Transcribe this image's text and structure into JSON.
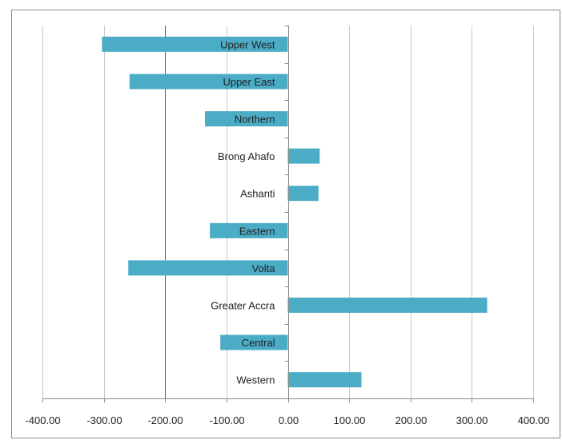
{
  "chart_data": {
    "type": "bar",
    "orientation": "horizontal",
    "title": "",
    "xlabel": "",
    "ylabel": "",
    "categories": [
      "Upper West",
      "Upper East",
      "Northern",
      "Brong Ahafo",
      "Ashanti",
      "Eastern",
      "Volta",
      "Greater Accra",
      "Central",
      "Western"
    ],
    "values": [
      -303,
      -258,
      -135,
      52,
      50,
      -127,
      -260,
      325,
      -110,
      120
    ],
    "xlim": [
      -400,
      400
    ],
    "x_ticks": [
      "-400.00",
      "-300.00",
      "-200.00",
      "-100.00",
      "0.00",
      "100.00",
      "200.00",
      "300.00",
      "400.00"
    ],
    "grid": "vertical",
    "legend": "none",
    "colors": {
      "bar": "#4bacc6",
      "gridline": "#c9c9c9",
      "axis": "#8c8c8c",
      "frame": "#8c8c8c"
    }
  }
}
